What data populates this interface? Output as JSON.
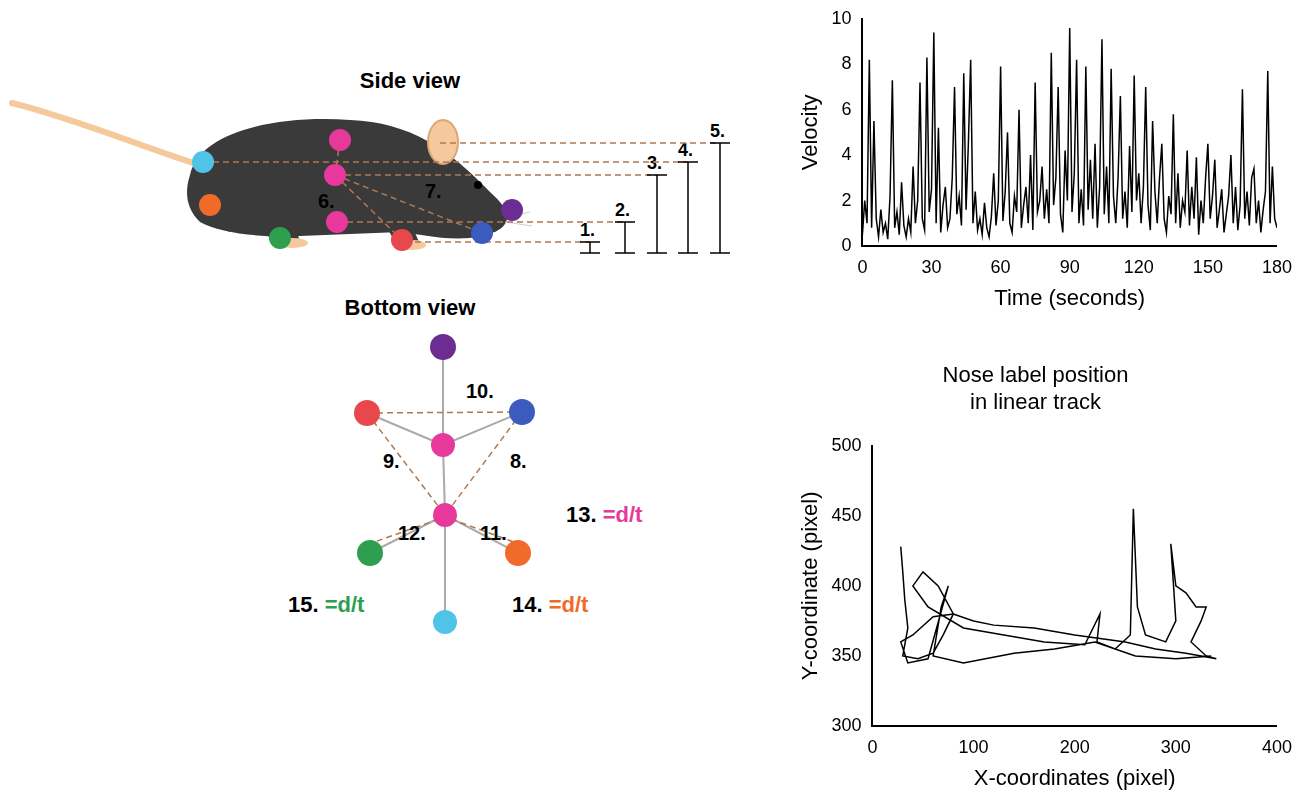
{
  "chart_data": [
    {
      "type": "line",
      "color": "#000000",
      "grid": false,
      "x_label": "Time (seconds)",
      "y_label": "Velocity",
      "xlim": [
        0,
        180
      ],
      "xticks": [
        0,
        30,
        60,
        90,
        120,
        150,
        180
      ],
      "ylim": [
        0,
        10
      ],
      "yticks": [
        0,
        2,
        4,
        6,
        8,
        10
      ],
      "x": [
        0,
        1,
        2,
        3,
        4,
        5,
        6,
        7,
        8,
        9,
        10,
        11,
        12,
        13,
        14,
        15,
        16,
        17,
        18,
        19,
        20,
        21,
        22,
        23,
        24,
        25,
        26,
        27,
        28,
        29,
        30,
        31,
        32,
        33,
        34,
        35,
        36,
        37,
        38,
        39,
        40,
        41,
        42,
        43,
        44,
        45,
        46,
        47,
        48,
        49,
        50,
        51,
        52,
        53,
        54,
        55,
        56,
        57,
        58,
        59,
        60,
        61,
        62,
        63,
        64,
        65,
        66,
        67,
        68,
        69,
        70,
        71,
        72,
        73,
        74,
        75,
        76,
        77,
        78,
        79,
        80,
        81,
        82,
        83,
        84,
        85,
        86,
        87,
        88,
        89,
        90,
        91,
        92,
        93,
        94,
        95,
        96,
        97,
        98,
        99,
        100,
        101,
        102,
        103,
        104,
        105,
        106,
        107,
        108,
        109,
        110,
        111,
        112,
        113,
        114,
        115,
        116,
        117,
        118,
        119,
        120,
        121,
        122,
        123,
        124,
        125,
        126,
        127,
        128,
        129,
        130,
        131,
        132,
        133,
        134,
        135,
        136,
        137,
        138,
        139,
        140,
        141,
        142,
        143,
        144,
        145,
        146,
        147,
        148,
        149,
        150,
        151,
        152,
        153,
        154,
        155,
        156,
        157,
        158,
        159,
        160,
        161,
        162,
        163,
        164,
        165,
        166,
        167,
        168,
        169,
        170,
        171,
        172,
        173,
        174,
        175,
        176,
        177,
        178,
        179,
        180
      ],
      "values": [
        0.5,
        2.0,
        1.0,
        8.2,
        0.8,
        5.5,
        1.2,
        0.4,
        1.6,
        0.6,
        1.0,
        0.3,
        2.2,
        7.3,
        0.8,
        1.5,
        0.5,
        2.8,
        0.9,
        0.4,
        1.2,
        0.6,
        3.5,
        1.0,
        2.0,
        7.2,
        1.2,
        0.7,
        8.3,
        1.5,
        2.5,
        9.4,
        1.0,
        5.2,
        0.6,
        1.8,
        2.6,
        0.8,
        1.2,
        3.0,
        7.0,
        1.4,
        2.2,
        0.9,
        7.6,
        1.6,
        4.5,
        8.2,
        1.0,
        2.4,
        0.7,
        1.2,
        0.5,
        1.9,
        0.8,
        0.4,
        1.3,
        3.2,
        0.9,
        2.0,
        7.9,
        1.1,
        2.4,
        5.0,
        1.0,
        0.6,
        2.2,
        1.5,
        6.0,
        0.8,
        1.8,
        2.6,
        1.0,
        4.0,
        0.7,
        7.2,
        1.5,
        2.0,
        3.5,
        1.2,
        2.5,
        1.0,
        8.5,
        1.8,
        3.0,
        7.0,
        1.4,
        0.6,
        4.2,
        2.0,
        9.6,
        1.5,
        3.2,
        8.2,
        1.0,
        2.5,
        0.9,
        7.9,
        1.6,
        3.8,
        1.2,
        4.5,
        0.8,
        2.6,
        9.1,
        1.4,
        3.5,
        1.0,
        7.8,
        2.2,
        1.0,
        3.0,
        6.6,
        1.2,
        2.4,
        0.8,
        4.4,
        1.5,
        7.5,
        2.0,
        3.2,
        1.0,
        2.6,
        7.0,
        1.8,
        0.7,
        5.5,
        2.4,
        1.0,
        3.0,
        4.5,
        1.2,
        0.6,
        2.2,
        1.4,
        5.8,
        1.0,
        3.2,
        0.8,
        2.0,
        1.5,
        4.2,
        0.9,
        2.6,
        1.2,
        3.9,
        0.5,
        2.0,
        1.0,
        3.0,
        4.5,
        1.2,
        2.2,
        3.8,
        0.8,
        1.6,
        2.5,
        0.6,
        1.4,
        2.2,
        4.0,
        1.0,
        2.6,
        0.7,
        1.8,
        6.9,
        1.2,
        2.4,
        0.9,
        3.0,
        3.4,
        1.0,
        2.0,
        0.6,
        1.6,
        2.4,
        7.7,
        1.0,
        3.5,
        1.2,
        0.8
      ]
    },
    {
      "type": "line",
      "title": [
        "Nose label position",
        "in linear track"
      ],
      "color": "#000000",
      "grid": false,
      "x_label": "X-coordinates (pixel)",
      "y_label": "Y-coordinate (pixel)",
      "xlim": [
        0,
        400
      ],
      "xticks": [
        0,
        100,
        200,
        300,
        400
      ],
      "ylim": [
        300,
        500
      ],
      "yticks": [
        300,
        350,
        400,
        450,
        500
      ],
      "x": [
        28,
        30,
        32,
        35,
        30,
        45,
        60,
        70,
        80,
        65,
        50,
        40,
        55,
        90,
        130,
        170,
        210,
        225,
        222,
        240,
        255,
        258,
        260,
        262,
        270,
        290,
        300,
        295,
        300,
        310,
        320,
        330,
        325,
        315,
        330,
        340,
        310,
        280,
        250,
        200,
        160,
        120,
        100,
        80,
        60,
        40,
        28,
        35,
        55,
        75,
        68,
        60,
        90,
        140,
        180,
        220,
        260,
        300,
        335
      ],
      "values": [
        428,
        410,
        390,
        370,
        350,
        348,
        352,
        365,
        380,
        400,
        410,
        400,
        385,
        370,
        365,
        360,
        358,
        380,
        360,
        355,
        365,
        455,
        420,
        385,
        365,
        360,
        375,
        430,
        400,
        395,
        385,
        385,
        375,
        360,
        350,
        348,
        352,
        355,
        360,
        365,
        370,
        372,
        375,
        380,
        378,
        365,
        360,
        345,
        348,
        400,
        385,
        350,
        345,
        352,
        355,
        360,
        350,
        348,
        350
      ]
    }
  ],
  "diagram": {
    "side_view": {
      "title": "Side view",
      "measure_labels": [
        "1.",
        "2.",
        "3.",
        "4.",
        "5."
      ],
      "angle_labels": [
        "6.",
        "7."
      ]
    },
    "bottom_view": {
      "title": "Bottom view",
      "distance_labels": [
        "8.",
        "9.",
        "10.",
        "11.",
        "12."
      ],
      "speed_labels": [
        {
          "number": "13.",
          "formula": "=d/t",
          "color": "#e6399b"
        },
        {
          "number": "14.",
          "formula": "=d/t",
          "color": "#f06a2a"
        },
        {
          "number": "15.",
          "formula": "=d/t",
          "color": "#2e9e4f"
        }
      ]
    }
  }
}
